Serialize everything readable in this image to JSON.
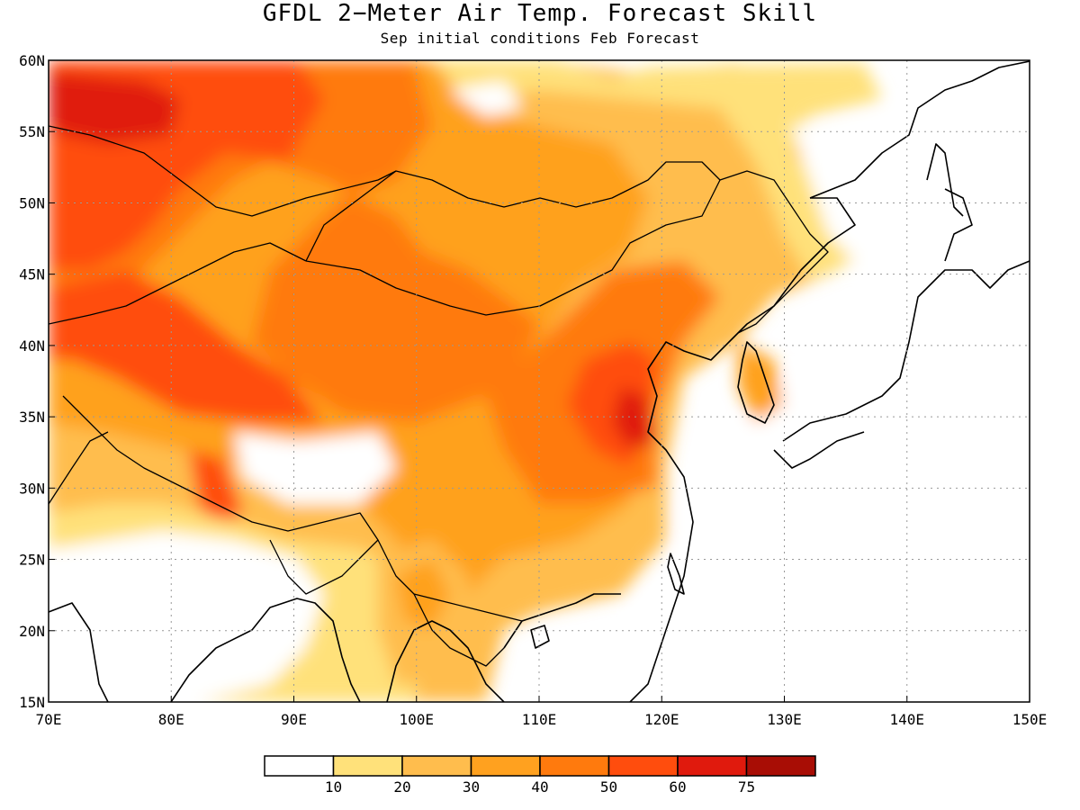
{
  "header": {
    "title": "GFDL 2−Meter Air Temp. Forecast Skill",
    "subtitle": "Sep initial conditions  Feb Forecast"
  },
  "map": {
    "lon_range": [
      70,
      150
    ],
    "lat_range": [
      15,
      60
    ],
    "x_ticks": [
      "70E",
      "80E",
      "90E",
      "100E",
      "110E",
      "120E",
      "130E",
      "140E",
      "150E"
    ],
    "y_ticks": [
      "60N",
      "55N",
      "50N",
      "45N",
      "40N",
      "35N",
      "30N",
      "25N",
      "20N",
      "15N"
    ],
    "grid": "dotted"
  },
  "legend": {
    "thresholds": [
      "10",
      "20",
      "30",
      "40",
      "50",
      "60",
      "75"
    ],
    "colors": [
      "#ffffff",
      "#ffe17a",
      "#ffbd4d",
      "#ffa11f",
      "#ff7a0d",
      "#ff4d0d",
      "#e01a0d",
      "#a80d05"
    ]
  }
}
